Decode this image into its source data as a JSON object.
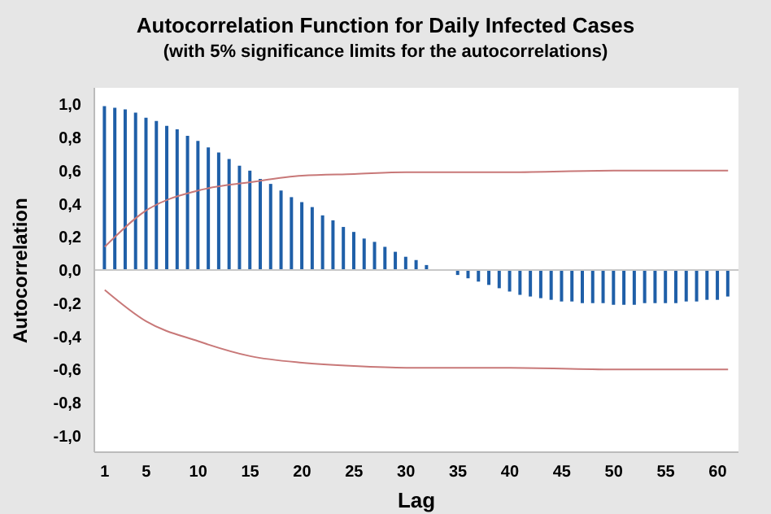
{
  "chart_data": {
    "type": "bar",
    "title": "Autocorrelation Function for Daily Infected Cases",
    "subtitle": "(with 5% significance limits for the autocorrelations)",
    "xlabel": "Lag",
    "ylabel": "Autocorrelation",
    "x": [
      1,
      2,
      3,
      4,
      5,
      6,
      7,
      8,
      9,
      10,
      11,
      12,
      13,
      14,
      15,
      16,
      17,
      18,
      19,
      20,
      21,
      22,
      23,
      24,
      25,
      26,
      27,
      28,
      29,
      30,
      31,
      32,
      33,
      34,
      35,
      36,
      37,
      38,
      39,
      40,
      41,
      42,
      43,
      44,
      45,
      46,
      47,
      48,
      49,
      50,
      51,
      52,
      53,
      54,
      55,
      56,
      57,
      58,
      59,
      60,
      61
    ],
    "series": [
      {
        "color": "#1f5fa8",
        "values": [
          0.99,
          0.98,
          0.97,
          0.95,
          0.92,
          0.9,
          0.87,
          0.85,
          0.81,
          0.78,
          0.74,
          0.71,
          0.67,
          0.63,
          0.6,
          0.55,
          0.52,
          0.48,
          0.44,
          0.41,
          0.38,
          0.33,
          0.3,
          0.26,
          0.23,
          0.19,
          0.17,
          0.14,
          0.11,
          0.08,
          0.06,
          0.03,
          null,
          null,
          -0.03,
          -0.05,
          -0.07,
          -0.09,
          -0.11,
          -0.13,
          -0.15,
          -0.16,
          -0.17,
          -0.18,
          -0.19,
          -0.19,
          -0.2,
          -0.2,
          -0.2,
          -0.21,
          -0.21,
          -0.21,
          -0.2,
          -0.2,
          -0.2,
          -0.2,
          -0.19,
          -0.19,
          -0.18,
          -0.18,
          -0.16
        ]
      },
      {
        "type": "line",
        "color": "#c87878",
        "x": [
          1,
          5,
          10,
          15,
          20,
          25,
          30,
          40,
          50,
          60,
          61
        ],
        "values": [
          0.14,
          0.36,
          0.48,
          0.53,
          0.57,
          0.58,
          0.59,
          0.59,
          0.6,
          0.6,
          0.6
        ]
      },
      {
        "type": "line",
        "color": "#c87878",
        "x": [
          1,
          5,
          10,
          15,
          20,
          25,
          30,
          40,
          50,
          60,
          61
        ],
        "values": [
          -0.12,
          -0.31,
          -0.43,
          -0.52,
          -0.56,
          -0.58,
          -0.59,
          -0.59,
          -0.6,
          -0.6,
          -0.6
        ]
      }
    ],
    "xlim": [
      0,
      62
    ],
    "xticks": [
      1,
      5,
      10,
      15,
      20,
      25,
      30,
      35,
      40,
      45,
      50,
      55,
      60
    ],
    "ylim": [
      -1.1,
      1.1
    ],
    "yticks": [
      {
        "value": -1,
        "label": "-1,0"
      },
      {
        "value": -0.8,
        "label": "-0,8"
      },
      {
        "value": -0.6,
        "label": "-0,6"
      },
      {
        "value": -0.4,
        "label": "-0,4"
      },
      {
        "value": -0.2,
        "label": "-0,2"
      },
      {
        "value": 0,
        "label": "0,0"
      },
      {
        "value": 0.2,
        "label": "0,2"
      },
      {
        "value": 0.4,
        "label": "0,4"
      },
      {
        "value": 0.6,
        "label": "0,6"
      },
      {
        "value": 0.8,
        "label": "0,8"
      },
      {
        "value": 1,
        "label": "1,0"
      }
    ],
    "ref_lines": [
      {
        "axis": "y",
        "value": 0,
        "color": "#c8c8c8"
      }
    ],
    "grid": false,
    "legend": false,
    "marker": "none"
  }
}
